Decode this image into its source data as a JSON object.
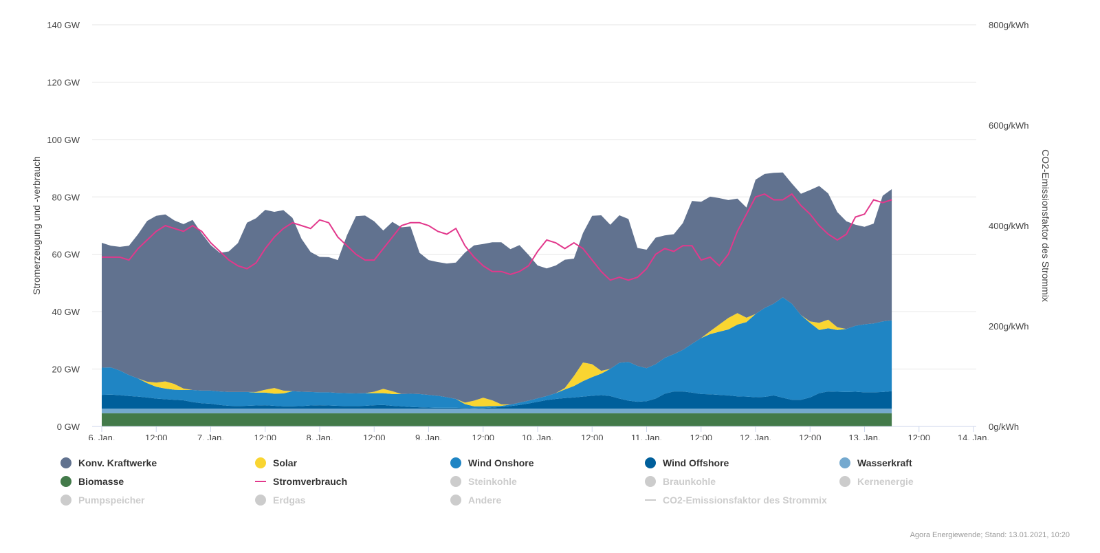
{
  "chart_data": {
    "type": "area",
    "x_start": "2021-01-06T00:00",
    "x_step_hours": 2,
    "x_ticks": [
      "6. Jan.",
      "12:00",
      "7. Jan.",
      "12:00",
      "8. Jan.",
      "12:00",
      "9. Jan.",
      "12:00",
      "10. Jan.",
      "12:00",
      "11. Jan.",
      "12:00",
      "12. Jan.",
      "12:00",
      "13. Jan.",
      "12:00",
      "14. Jan."
    ],
    "xlim_hours": [
      0,
      192
    ],
    "ylabel": "Stromerzeugung und -verbrauch",
    "y2label": "CO2-Emissionsfaktor des Strommix",
    "ylim": [
      0,
      140
    ],
    "y_ticks": [
      "0 GW",
      "20 GW",
      "40 GW",
      "60 GW",
      "80 GW",
      "100 GW",
      "120 GW",
      "140 GW"
    ],
    "y2lim": [
      0,
      800
    ],
    "y2_ticks": [
      "0g/kWh",
      "200g/kWh",
      "400g/kWh",
      "600g/kWh",
      "800g/kWh"
    ],
    "grid": true,
    "stacked_series": [
      {
        "name": "Biomasse",
        "color": "#437a4a",
        "values": [
          4.6,
          4.6,
          4.6,
          4.6,
          4.6,
          4.6,
          4.6,
          4.6,
          4.6,
          4.6,
          4.6,
          4.6,
          4.6,
          4.6,
          4.6,
          4.6,
          4.6,
          4.6,
          4.6,
          4.6,
          4.6,
          4.6,
          4.6,
          4.6,
          4.6,
          4.6,
          4.6,
          4.6,
          4.6,
          4.6,
          4.6,
          4.6,
          4.6,
          4.6,
          4.6,
          4.6,
          4.6,
          4.6,
          4.6,
          4.6,
          4.6,
          4.6,
          4.6,
          4.6,
          4.6,
          4.6,
          4.6,
          4.6,
          4.6,
          4.6,
          4.6,
          4.6,
          4.6,
          4.6,
          4.6,
          4.6,
          4.6,
          4.6,
          4.6,
          4.6,
          4.6,
          4.6,
          4.6,
          4.6,
          4.6,
          4.6,
          4.6,
          4.6,
          4.6,
          4.6,
          4.6,
          4.6,
          4.6,
          4.6,
          4.6,
          4.6,
          4.6,
          4.6,
          4.6,
          4.6,
          4.6,
          4.6,
          4.6,
          4.6,
          4.6,
          4.6,
          4.6,
          4.6
        ]
      },
      {
        "name": "Wasserkraft",
        "color": "#74a9cf",
        "values": [
          1.6,
          1.6,
          1.6,
          1.6,
          1.6,
          1.6,
          1.6,
          1.6,
          1.6,
          1.6,
          1.6,
          1.6,
          1.6,
          1.6,
          1.6,
          1.6,
          1.6,
          1.6,
          1.6,
          1.6,
          1.6,
          1.6,
          1.6,
          1.6,
          1.6,
          1.6,
          1.6,
          1.6,
          1.6,
          1.6,
          1.6,
          1.6,
          1.6,
          1.6,
          1.6,
          1.6,
          1.6,
          1.6,
          1.6,
          1.6,
          1.6,
          1.6,
          1.6,
          1.6,
          1.6,
          1.6,
          1.6,
          1.6,
          1.6,
          1.6,
          1.6,
          1.6,
          1.6,
          1.6,
          1.6,
          1.6,
          1.6,
          1.6,
          1.6,
          1.6,
          1.6,
          1.6,
          1.6,
          1.6,
          1.6,
          1.6,
          1.6,
          1.6,
          1.6,
          1.6,
          1.6,
          1.6,
          1.6,
          1.6,
          1.6,
          1.6,
          1.6,
          1.6,
          1.6,
          1.6,
          1.6,
          1.6,
          1.6,
          1.6,
          1.6,
          1.6,
          1.6,
          1.6
        ]
      },
      {
        "name": "Wind Offshore",
        "color": "#005f9b",
        "values": [
          4.8,
          4.9,
          4.7,
          4.4,
          4.2,
          3.9,
          3.5,
          3.3,
          3.1,
          2.9,
          2.3,
          1.9,
          1.7,
          1.3,
          1.0,
          0.9,
          1.0,
          1.1,
          1.2,
          1.0,
          0.8,
          0.8,
          0.9,
          1.1,
          1.2,
          1.1,
          1.0,
          0.9,
          0.9,
          1.0,
          1.2,
          1.3,
          1.0,
          0.8,
          0.6,
          0.5,
          0.4,
          0.3,
          0.3,
          0.3,
          0.2,
          0.1,
          0.2,
          0.4,
          0.6,
          0.9,
          1.3,
          1.8,
          2.4,
          3.0,
          3.4,
          3.7,
          3.9,
          4.2,
          4.5,
          4.7,
          4.4,
          3.5,
          2.8,
          2.4,
          2.6,
          3.5,
          5.2,
          6.0,
          6.0,
          5.6,
          5.1,
          5.0,
          4.8,
          4.6,
          4.3,
          4.2,
          4.0,
          4.1,
          4.6,
          3.8,
          3.1,
          3.1,
          3.9,
          5.4,
          6.0,
          5.9,
          5.8,
          5.9,
          5.7,
          5.7,
          5.8,
          6.1
        ]
      },
      {
        "name": "Wind Onshore",
        "color": "#1f85c4",
        "values": [
          9.5,
          9.5,
          8.6,
          7.3,
          6.3,
          5.0,
          4.1,
          3.7,
          3.5,
          3.6,
          4.2,
          4.4,
          4.6,
          4.7,
          4.8,
          4.9,
          4.8,
          4.5,
          4.4,
          4.2,
          4.5,
          5.3,
          5.0,
          4.7,
          4.5,
          4.6,
          4.5,
          4.5,
          4.4,
          4.4,
          4.2,
          4.1,
          4.1,
          4.3,
          4.6,
          4.6,
          4.4,
          4.2,
          3.7,
          3.1,
          1.4,
          0.7,
          0.6,
          0.5,
          0.4,
          0.5,
          0.8,
          1.0,
          1.2,
          1.4,
          2.0,
          3.0,
          4.0,
          5.4,
          6.5,
          7.5,
          9.5,
          12.5,
          13.5,
          12.5,
          11.5,
          12.0,
          12.5,
          13.0,
          14.5,
          17.0,
          19.5,
          21.0,
          22.0,
          23.0,
          25.0,
          26.0,
          29.0,
          31.0,
          32.0,
          35.0,
          33.5,
          29.5,
          26.0,
          22.0,
          22.0,
          21.5,
          22.0,
          23.0,
          23.7,
          24.0,
          24.6,
          24.7
        ]
      },
      {
        "name": "Solar",
        "color": "#f9d531",
        "values": [
          0,
          0,
          0,
          0,
          0,
          0.5,
          1.5,
          2.5,
          2.0,
          0.5,
          0,
          0,
          0,
          0,
          0,
          0,
          0,
          0.2,
          1.0,
          2.0,
          1.0,
          0,
          0,
          0,
          0,
          0,
          0,
          0,
          0,
          0,
          0.5,
          1.5,
          1.0,
          0,
          0,
          0,
          0,
          0,
          0,
          0,
          0.5,
          2.0,
          3.0,
          2.0,
          0.5,
          0,
          0,
          0,
          0,
          0,
          0,
          0.5,
          3.5,
          6.5,
          4.5,
          1.0,
          0,
          0,
          0,
          0,
          0,
          0,
          0,
          0,
          0,
          0,
          0,
          1.0,
          2.5,
          4.0,
          4.0,
          1.5,
          0,
          0,
          0,
          0,
          0,
          0,
          0.5,
          2.5,
          3.0,
          1.0,
          0,
          0,
          0,
          0,
          0,
          0
        ]
      },
      {
        "name": "Konv. Kraftwerke",
        "color": "#61728f",
        "values": [
          43.5,
          42.4,
          43.1,
          45.1,
          50.3,
          56.0,
          58.1,
          58.2,
          57.0,
          57.3,
          59.3,
          54.8,
          50.7,
          48.3,
          49.0,
          51.9,
          59.0,
          60.6,
          62.7,
          61.4,
          62.9,
          60.4,
          53.3,
          48.8,
          47.2,
          47.1,
          46.3,
          55.0,
          61.8,
          61.9,
          59.4,
          55.2,
          59.0,
          58.1,
          58.3,
          49.2,
          47.0,
          46.6,
          46.6,
          47.5,
          52.3,
          54.1,
          53.6,
          55.1,
          56.5,
          54.2,
          54.9,
          50.8,
          46.3,
          44.5,
          44.5,
          44.7,
          40.9,
          45.1,
          51.7,
          54.2,
          50.2,
          51.4,
          49.8,
          41.1,
          41.3,
          44.1,
          42.7,
          41.8,
          44.2,
          49.8,
          47.5,
          46.9,
          44.1,
          41.1,
          39.9,
          38.4,
          46.8,
          46.7,
          45.6,
          43.5,
          41.9,
          42.3,
          45.8,
          47.7,
          44.0,
          40.1,
          37.5,
          35.2,
          34.0,
          34.8,
          43.8,
          45.7
        ]
      }
    ],
    "line_series": [
      {
        "name": "Stromverbrauch",
        "color": "#e2388c",
        "values": [
          59,
          59,
          59,
          58,
          62,
          65,
          68,
          70,
          69,
          68,
          70,
          68,
          64,
          61,
          58,
          56,
          55,
          57,
          62,
          66,
          69,
          71,
          70,
          69,
          72,
          71,
          66,
          63,
          60,
          58,
          58,
          62,
          66,
          70,
          71,
          71,
          70,
          68,
          67,
          69,
          63,
          59,
          56,
          54,
          54,
          53,
          54,
          56,
          61,
          65,
          64,
          62,
          64,
          62,
          58,
          54,
          51,
          52,
          51,
          52,
          55,
          60,
          62,
          61,
          63,
          63,
          58,
          59,
          56,
          60,
          68,
          74,
          80,
          81,
          79,
          79,
          81,
          77,
          74,
          70,
          67,
          65,
          67,
          73,
          74,
          79,
          78,
          79
        ]
      },
      {
        "name": "CO2-Emissionsfaktor des Strommix",
        "color": "#cccccc",
        "values": []
      }
    ],
    "hidden_series": [
      "Steinkohle",
      "Braunkohle",
      "Kernenergie",
      "Pumpspeicher",
      "Erdgas",
      "Andere",
      "CO2-Emissionsfaktor des Strommix"
    ],
    "legend": [
      {
        "name": "Konv. Kraftwerke",
        "color": "#61728f",
        "visible": true,
        "symbol": "dot"
      },
      {
        "name": "Solar",
        "color": "#f9d531",
        "visible": true,
        "symbol": "dot"
      },
      {
        "name": "Wind Onshore",
        "color": "#1f85c4",
        "visible": true,
        "symbol": "dot"
      },
      {
        "name": "Wind Offshore",
        "color": "#005f9b",
        "visible": true,
        "symbol": "dot"
      },
      {
        "name": "Wasserkraft",
        "color": "#74a9cf",
        "visible": true,
        "symbol": "dot"
      },
      {
        "name": "Biomasse",
        "color": "#437a4a",
        "visible": true,
        "symbol": "dot"
      },
      {
        "name": "Stromverbrauch",
        "color": "#e2388c",
        "visible": true,
        "symbol": "line"
      },
      {
        "name": "Steinkohle",
        "color": "#cccccc",
        "visible": false,
        "symbol": "dot"
      },
      {
        "name": "Braunkohle",
        "color": "#cccccc",
        "visible": false,
        "symbol": "dot"
      },
      {
        "name": "Kernenergie",
        "color": "#cccccc",
        "visible": false,
        "symbol": "dot"
      },
      {
        "name": "Pumpspeicher",
        "color": "#cccccc",
        "visible": false,
        "symbol": "dot"
      },
      {
        "name": "Erdgas",
        "color": "#cccccc",
        "visible": false,
        "symbol": "dot"
      },
      {
        "name": "Andere",
        "color": "#cccccc",
        "visible": false,
        "symbol": "dot"
      },
      {
        "name": "CO2-Emissionsfaktor des Strommix",
        "color": "#cccccc",
        "visible": false,
        "symbol": "line"
      }
    ],
    "legend_placement": "bottom"
  },
  "credits": "Agora Energiewende; Stand: 13.01.2021, 10:20"
}
